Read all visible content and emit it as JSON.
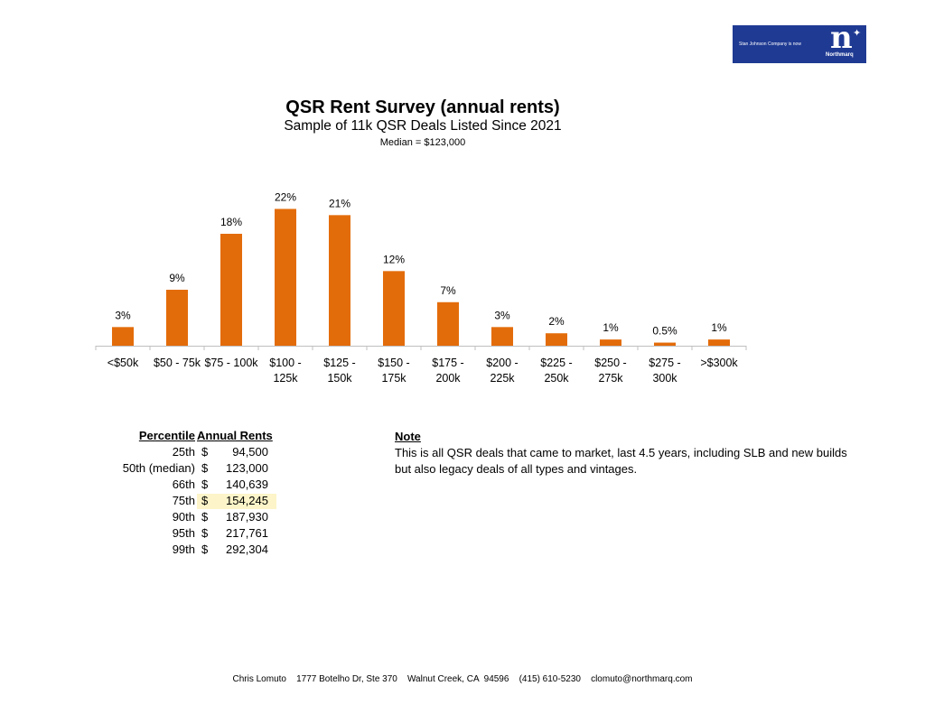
{
  "logo": {
    "tagline": "Stan Johnson Company is now",
    "brand": "Northmarq",
    "accent": "#1f3a93"
  },
  "chart_data": {
    "type": "bar",
    "title": "QSR Rent Survey (annual rents)",
    "subtitle": "Sample of 11k QSR Deals Listed Since 2021",
    "annotation": "Median = $123,000",
    "categories": [
      [
        "<$50k"
      ],
      [
        "$50 - 75k"
      ],
      [
        "$75 - 100k"
      ],
      [
        "$100 -",
        "125k"
      ],
      [
        "$125 -",
        "150k"
      ],
      [
        "$150 -",
        "175k"
      ],
      [
        "$175 -",
        "200k"
      ],
      [
        "$200 -",
        "225k"
      ],
      [
        "$225 -",
        "250k"
      ],
      [
        "$250 -",
        "275k"
      ],
      [
        "$275 -",
        "300k"
      ],
      [
        ">$300k"
      ]
    ],
    "values": [
      3,
      9,
      18,
      22,
      21,
      12,
      7,
      3,
      2,
      1,
      0.5,
      1
    ],
    "data_labels": [
      "3%",
      "9%",
      "18%",
      "22%",
      "21%",
      "12%",
      "7%",
      "3%",
      "2%",
      "1%",
      "0.5%",
      "1%"
    ],
    "ylim": [
      0,
      22.5
    ],
    "xlabel": "",
    "ylabel": "",
    "grid": false,
    "bar_color": "#e36c0a"
  },
  "table": {
    "headers": {
      "percentile": "Percentile",
      "rents": "Annual Rents"
    },
    "rows": [
      {
        "percentile": "25th",
        "dollar": "$",
        "value": "94,500"
      },
      {
        "percentile": "50th (median)",
        "dollar": "$",
        "value": "123,000"
      },
      {
        "percentile": "66th",
        "dollar": "$",
        "value": "140,639"
      },
      {
        "percentile": "75th",
        "dollar": "$",
        "value": "154,245",
        "highlight": true
      },
      {
        "percentile": "90th",
        "dollar": "$",
        "value": "187,930"
      },
      {
        "percentile": "95th",
        "dollar": "$",
        "value": "217,761"
      },
      {
        "percentile": "99th",
        "dollar": "$",
        "value": "292,304"
      }
    ],
    "highlight_color": "#fdf5c9"
  },
  "note": {
    "heading": "Note",
    "lines": [
      "This is all QSR deals that came to market, last 4.5 years, including SLB and new builds",
      "but also legacy deals of all types and vintages."
    ]
  },
  "footer": {
    "name": "Chris Lomuto",
    "address": "1777 Botelho Dr, Ste 370",
    "city": "Walnut Creek, CA  94596",
    "phone": "(415) 610-5230",
    "email": "clomuto@northmarq.com"
  }
}
